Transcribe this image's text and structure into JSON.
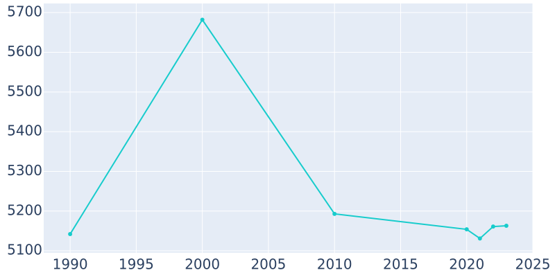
{
  "chart_data": {
    "type": "line",
    "x": [
      1990,
      2000,
      2010,
      2020,
      2021,
      2022,
      2023
    ],
    "series": [
      {
        "color": "#17cccc",
        "values": [
          5142,
          5682,
          5193,
          5154,
          5131,
          5161,
          5163
        ]
      }
    ],
    "xlim": [
      1988,
      2025
    ],
    "xticks": [
      1990,
      1995,
      2000,
      2005,
      2010,
      2015,
      2020,
      2025
    ],
    "ylim": [
      5095,
      5723
    ],
    "yticks": [
      5100,
      5200,
      5300,
      5400,
      5500,
      5600,
      5700
    ],
    "grid": true
  }
}
